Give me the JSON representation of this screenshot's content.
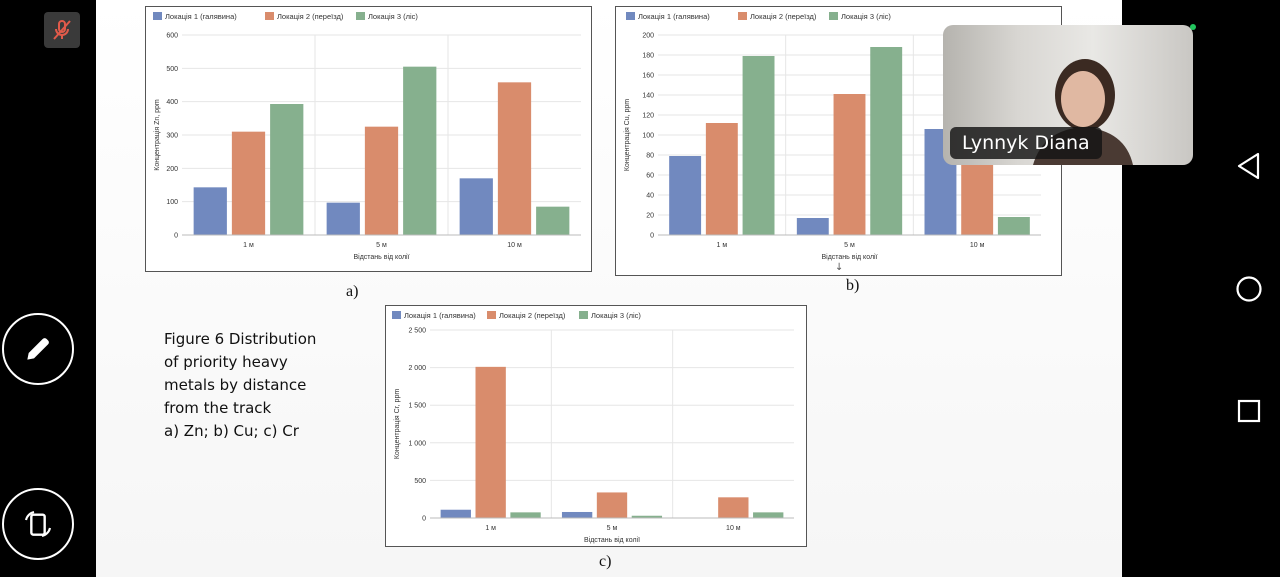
{
  "app": {
    "participant_name": "Lynnyk Diana",
    "mic_state": "muted",
    "mic_icon": "mic-muted-icon",
    "edit_icon": "pencil-icon",
    "rotate_icon": "rotate-screen-icon",
    "nav_back_icon": "back-triangle-icon",
    "nav_home_icon": "home-circle-icon",
    "nav_recent_icon": "recent-square-icon",
    "status_dot_color": "#22c55e"
  },
  "slide": {
    "figure_text": [
      "Figure 6  Distribution",
      "of priority heavy",
      "metals by distance",
      "from the track",
      "a) Zn; b) Cu; c) Cr"
    ],
    "caption_a": "a)",
    "caption_b": "b)",
    "caption_c": "c)",
    "scroll_indicator": "↓"
  },
  "chart_data": [
    {
      "type": "bar",
      "legend": [
        "Локація 1 (галявина)",
        "Локація 2 (переїзд)",
        "Локація 3 (ліс)"
      ],
      "colors": [
        "#7189bf",
        "#d98c6c",
        "#86b08e"
      ],
      "categories": [
        "1 м",
        "5 м",
        "10 м"
      ],
      "series": [
        {
          "name": "Локація 1 (галявина)",
          "values": [
            143,
            97,
            170
          ]
        },
        {
          "name": "Локація 2 (переїзд)",
          "values": [
            310,
            325,
            458
          ]
        },
        {
          "name": "Локація 3 (ліс)",
          "values": [
            393,
            505,
            85
          ]
        }
      ],
      "ylim": [
        0,
        600
      ],
      "yticks": [
        "0",
        "100",
        "200",
        "300",
        "400",
        "500",
        "600"
      ],
      "ytick_values": [
        0,
        100,
        200,
        300,
        400,
        500,
        600
      ],
      "xlabel": "Відстань від колії",
      "ylabel": "Концентрація Zn, ppm",
      "grid": true,
      "legend_position": "top-left"
    },
    {
      "type": "bar",
      "legend": [
        "Локація 1 (галявина)",
        "Локація 2 (переїзд)",
        "Локація 3 (ліс)"
      ],
      "colors": [
        "#7189bf",
        "#d98c6c",
        "#86b08e"
      ],
      "categories": [
        "1 м",
        "5 м",
        "10 м"
      ],
      "series": [
        {
          "name": "Локація 1 (галявина)",
          "values": [
            79,
            17,
            106
          ]
        },
        {
          "name": "Локація 2 (переїзд)",
          "values": [
            112,
            141,
            88
          ]
        },
        {
          "name": "Локація 3 (ліс)",
          "values": [
            179,
            188,
            18
          ]
        }
      ],
      "ylim": [
        0,
        200
      ],
      "yticks": [
        "0",
        "20",
        "40",
        "60",
        "80",
        "100",
        "120",
        "140",
        "160",
        "180",
        "200"
      ],
      "ytick_values": [
        0,
        20,
        40,
        60,
        80,
        100,
        120,
        140,
        160,
        180,
        200
      ],
      "xlabel": "Відстань від колії",
      "ylabel": "Концентрація Cu, ppm",
      "grid": true,
      "legend_position": "top-left"
    },
    {
      "type": "bar",
      "legend": [
        "Локація 1 (галявина)",
        "Локація 2 (переїзд)",
        "Локація 3 (ліс)"
      ],
      "colors": [
        "#7189bf",
        "#d98c6c",
        "#86b08e"
      ],
      "categories": [
        "1 м",
        "5 м",
        "10 м"
      ],
      "series": [
        {
          "name": "Локація 1 (галявина)",
          "values": [
            110,
            80,
            0
          ]
        },
        {
          "name": "Локація 2 (переїзд)",
          "values": [
            2010,
            340,
            275
          ]
        },
        {
          "name": "Локація 3 (ліс)",
          "values": [
            75,
            30,
            75
          ]
        }
      ],
      "ylim": [
        0,
        2500
      ],
      "yticks": [
        "0",
        "500",
        "1 000",
        "1 500",
        "2 000",
        "2 500"
      ],
      "ytick_values": [
        0,
        500,
        1000,
        1500,
        2000,
        2500
      ],
      "xlabel": "Відстань від колії",
      "ylabel": "Концентрація Cr, ppm",
      "grid": true,
      "legend_position": "top-left"
    }
  ]
}
